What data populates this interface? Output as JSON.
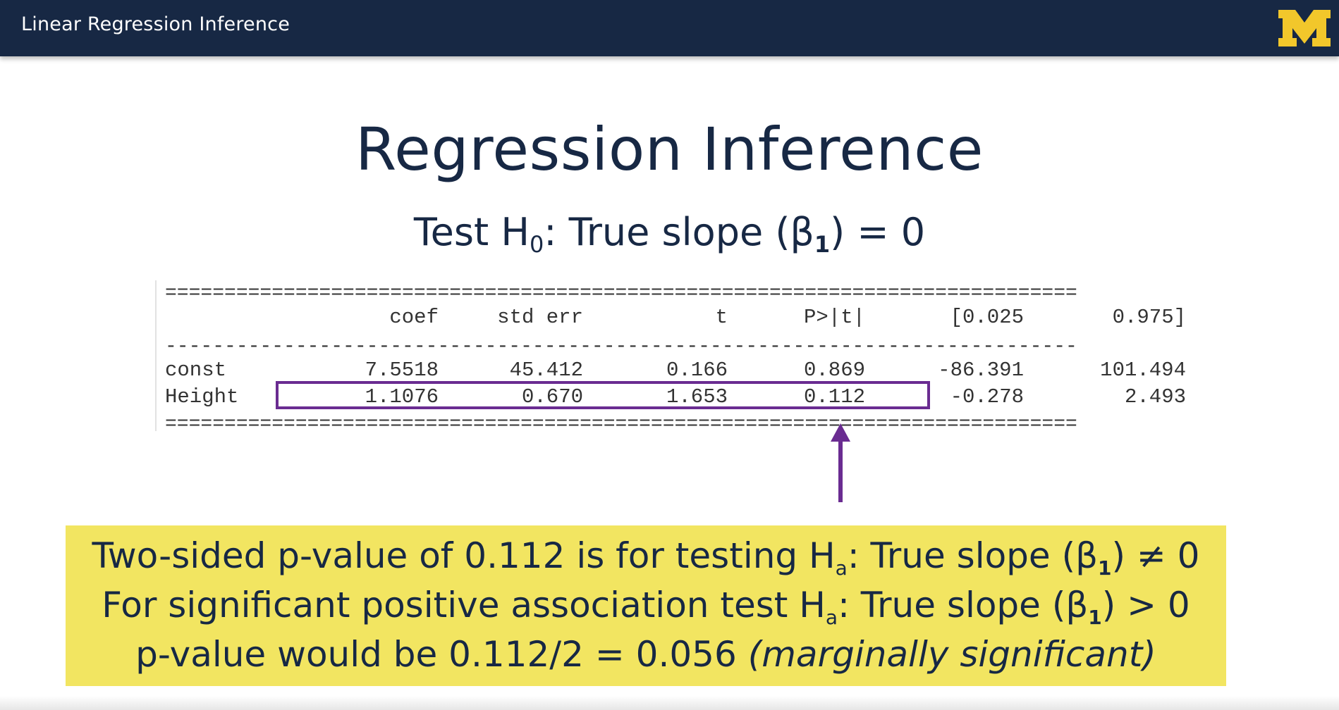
{
  "header": {
    "title": "Linear Regression Inference",
    "logo_text": "M",
    "bg_color": "#172844",
    "logo_color": "#f2c72b"
  },
  "slide": {
    "title": "Regression Inference",
    "subtitle": {
      "prefix": "Test H",
      "sub0": "0",
      "middle": ": True slope (β",
      "sub1": "1",
      "suffix": ") = 0"
    }
  },
  "table": {
    "rule_double": "=============================================================================",
    "rule_single": "-----------------------------------------------------------------------------",
    "headers": [
      "",
      "coef",
      "std err",
      "t",
      "P>|t|",
      "[0.025",
      "0.975]"
    ],
    "rows": [
      {
        "name": "const",
        "values": [
          "7.5518",
          "45.412",
          "0.166",
          "0.869",
          "-86.391",
          "101.494"
        ]
      },
      {
        "name": "Height",
        "values": [
          "1.1076",
          "0.670",
          "1.653",
          "0.112",
          "-0.278",
          "2.493"
        ]
      }
    ],
    "highlight_color": "#6a2c91"
  },
  "note": {
    "bg_color": "#f2e561",
    "line1": {
      "a": "Two-sided p-value of 0.112 is for testing H",
      "sub_a": "a",
      "b": ": True slope (β",
      "sub_b": "1",
      "c": ") ≠ 0"
    },
    "line2": {
      "a": "For significant positive association test H",
      "sub_a": "a",
      "b": ": True slope (β",
      "sub_b": "1",
      "c": ") > 0"
    },
    "line3": {
      "a": "p-value would be 0.112/2 = 0.056 ",
      "italic": "(marginally significant)"
    }
  }
}
